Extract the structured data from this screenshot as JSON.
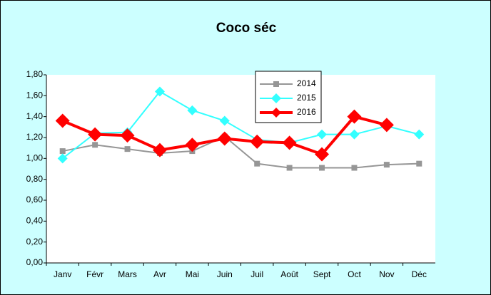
{
  "chart_data": {
    "type": "line",
    "title": "Coco séc",
    "categories": [
      "Janv",
      "Févr",
      "Mars",
      "Avr",
      "Mai",
      "Juin",
      "Juil",
      "Août",
      "Sept",
      "Oct",
      "Nov",
      "Déc"
    ],
    "series": [
      {
        "name": "2014",
        "color": "#969696",
        "marker": "square",
        "values": [
          1.07,
          1.13,
          1.09,
          1.05,
          1.07,
          1.21,
          0.95,
          0.91,
          0.91,
          0.91,
          0.94,
          0.95
        ]
      },
      {
        "name": "2015",
        "color": "#33ffff",
        "marker": "diamond",
        "values": [
          1.0,
          1.24,
          1.25,
          1.64,
          1.46,
          1.36,
          1.18,
          1.15,
          1.23,
          1.23,
          1.31,
          1.23
        ]
      },
      {
        "name": "2016",
        "color": "#ff0000",
        "marker": "diamond",
        "values": [
          1.36,
          1.23,
          1.22,
          1.08,
          1.13,
          1.19,
          1.16,
          1.15,
          1.04,
          1.4,
          1.32,
          null
        ]
      }
    ],
    "ylim": [
      0,
      1.8
    ],
    "yticks": [
      {
        "value": 0,
        "label": "0,00"
      },
      {
        "value": 0.2,
        "label": "0,20"
      },
      {
        "value": 0.4,
        "label": "0,40"
      },
      {
        "value": 0.6,
        "label": "0,60"
      },
      {
        "value": 0.8,
        "label": "0,80"
      },
      {
        "value": 1.0,
        "label": "1,00"
      },
      {
        "value": 1.2,
        "label": "1,20"
      },
      {
        "value": 1.4,
        "label": "1,40"
      },
      {
        "value": 1.6,
        "label": "1,60"
      },
      {
        "value": 1.8,
        "label": "1,80"
      }
    ],
    "grid": false
  }
}
